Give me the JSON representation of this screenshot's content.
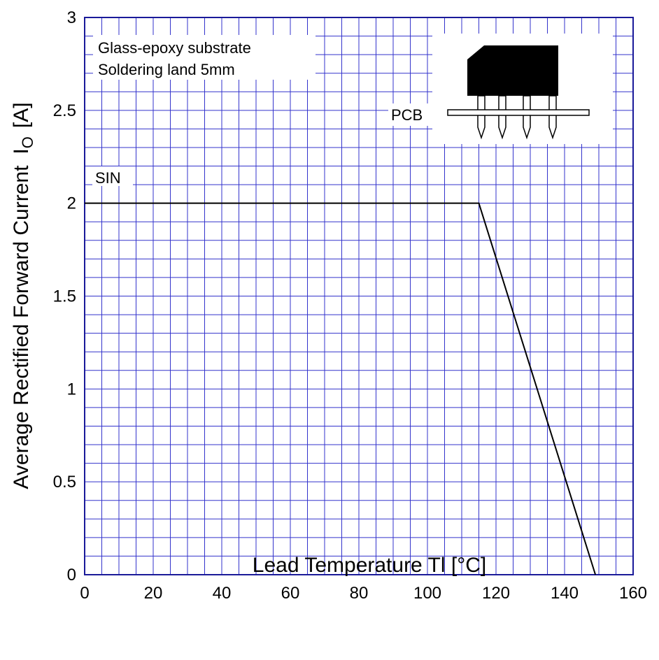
{
  "chart_data": {
    "type": "line",
    "title": "",
    "xlabel": "Lead Temperature  Tl  [°C]",
    "ylabel": "Average Rectified Forward Current",
    "ylabel_symbol": "I",
    "ylabel_subscript": "O",
    "ylabel_unit": "[A]",
    "xlim": [
      0,
      160
    ],
    "ylim": [
      0,
      3
    ],
    "x_major_ticks": [
      0,
      20,
      40,
      60,
      80,
      100,
      120,
      140,
      160
    ],
    "x_minor_step": 5,
    "y_major_ticks": [
      0,
      0.5,
      1,
      1.5,
      2,
      2.5,
      3
    ],
    "y_tick_labels": [
      "0",
      "0.5",
      "1",
      "1.5",
      "2",
      "2.5",
      "3"
    ],
    "y_minor_step": 0.1,
    "grid": true,
    "series": [
      {
        "name": "SIN",
        "x": [
          0,
          115,
          149
        ],
        "y": [
          2,
          2,
          0
        ]
      }
    ],
    "annotations": {
      "line1": "Glass-epoxy  substrate",
      "line2": "Soldering  land  5mm",
      "pcb_label": "PCB"
    }
  },
  "colors": {
    "grid": "#3333cc",
    "frame": "#1a1a99",
    "curve": "#000000",
    "package": "#000000"
  }
}
